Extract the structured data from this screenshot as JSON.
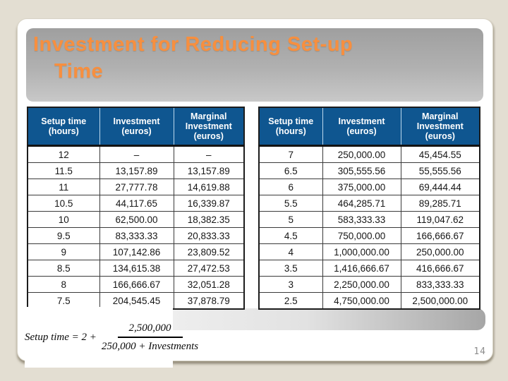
{
  "slide": {
    "title_line1": "Investment for Reducing Set-up",
    "title_line2": "Time",
    "page_number": "14"
  },
  "tables": {
    "headers": [
      {
        "lines": [
          "Setup time",
          "(hours)"
        ]
      },
      {
        "lines": [
          "Investment",
          "(euros)"
        ]
      },
      {
        "lines": [
          "Marginal",
          "Investment",
          "(euros)"
        ]
      }
    ],
    "left_rows": [
      [
        "12",
        "–",
        "–"
      ],
      [
        "11.5",
        "13,157.89",
        "13,157.89"
      ],
      [
        "11",
        "27,777.78",
        "14,619.88"
      ],
      [
        "10.5",
        "44,117.65",
        "16,339.87"
      ],
      [
        "10",
        "62,500.00",
        "18,382.35"
      ],
      [
        "9.5",
        "83,333.33",
        "20,833.33"
      ],
      [
        "9",
        "107,142.86",
        "23,809.52"
      ],
      [
        "8.5",
        "134,615.38",
        "27,472.53"
      ],
      [
        "8",
        "166,666.67",
        "32,051.28"
      ],
      [
        "7.5",
        "204,545.45",
        "37,878.79"
      ]
    ],
    "right_rows": [
      [
        "7",
        "250,000.00",
        "45,454.55"
      ],
      [
        "6.5",
        "305,555.56",
        "55,555.56"
      ],
      [
        "6",
        "375,000.00",
        "69,444.44"
      ],
      [
        "5.5",
        "464,285.71",
        "89,285.71"
      ],
      [
        "5",
        "583,333.33",
        "119,047.62"
      ],
      [
        "4.5",
        "750,000.00",
        "166,666.67"
      ],
      [
        "4",
        "1,000,000.00",
        "250,000.00"
      ],
      [
        "3.5",
        "1,416,666.67",
        "416,666.67"
      ],
      [
        "3",
        "2,250,000.00",
        "833,333.33"
      ],
      [
        "2.5",
        "4,750,000.00",
        "2,500,000.00"
      ]
    ]
  },
  "formula": {
    "prefix": "Setup time = 2 +",
    "numerator": "2,500,000",
    "denominator": "250,000 + Investments"
  },
  "colors": {
    "background_beige": "#e3ded2",
    "title_orange": "#f78f3f",
    "table_header_blue": "#0f5690",
    "title_box_gray": "#b1b1b1",
    "slide_white": "#ffffff"
  }
}
